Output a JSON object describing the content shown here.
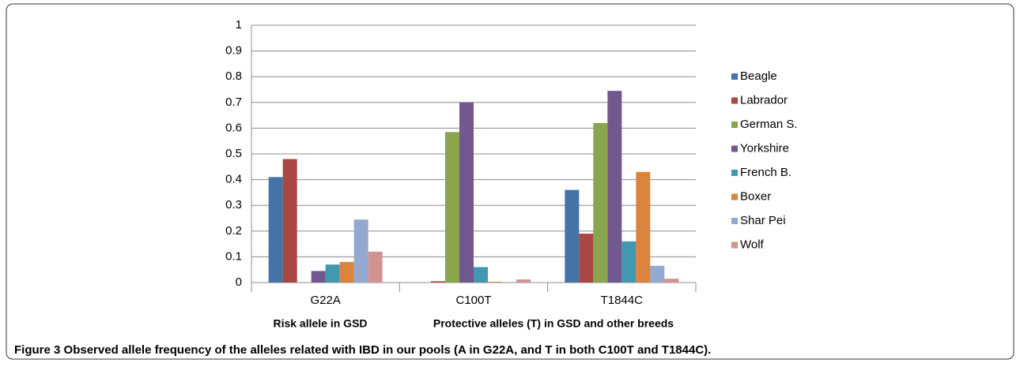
{
  "chart_data": {
    "type": "bar",
    "categories": [
      "G22A",
      "C100T",
      "T1844C"
    ],
    "series": [
      {
        "name": "Beagle",
        "color": "#4573a7",
        "values": [
          0.41,
          0,
          0.36
        ]
      },
      {
        "name": "Labrador",
        "color": "#aa4643",
        "values": [
          0.48,
          0.005,
          0.19
        ]
      },
      {
        "name": "German S.",
        "color": "#89a54e",
        "values": [
          0,
          0.585,
          0.62
        ]
      },
      {
        "name": "Yorkshire",
        "color": "#71588f",
        "values": [
          0.045,
          0.7,
          0.745
        ]
      },
      {
        "name": "French B.",
        "color": "#4198af",
        "values": [
          0.07,
          0.06,
          0.16
        ]
      },
      {
        "name": "Boxer",
        "color": "#db843d",
        "values": [
          0.08,
          0.003,
          0.43
        ]
      },
      {
        "name": "Shar Pei",
        "color": "#93a9cf",
        "values": [
          0.245,
          0,
          0.065
        ]
      },
      {
        "name": "Wolf",
        "color": "#d19392",
        "values": [
          0.12,
          0.012,
          0.015
        ]
      }
    ],
    "ylim": [
      0,
      1
    ],
    "yticks": [
      0,
      0.1,
      0.2,
      0.3,
      0.4,
      0.5,
      0.6,
      0.7,
      0.8,
      0.9,
      1
    ],
    "grid": true,
    "legend": "right",
    "annotations": [
      "Risk allele in GSD",
      "Protective alleles (T) in GSD and other breeds"
    ]
  },
  "caption": {
    "label": "Figure 3",
    "text": "Observed allele frequency of the alleles related with IBD in our pools (A in G22A, and T in both C100T and T1844C)."
  }
}
